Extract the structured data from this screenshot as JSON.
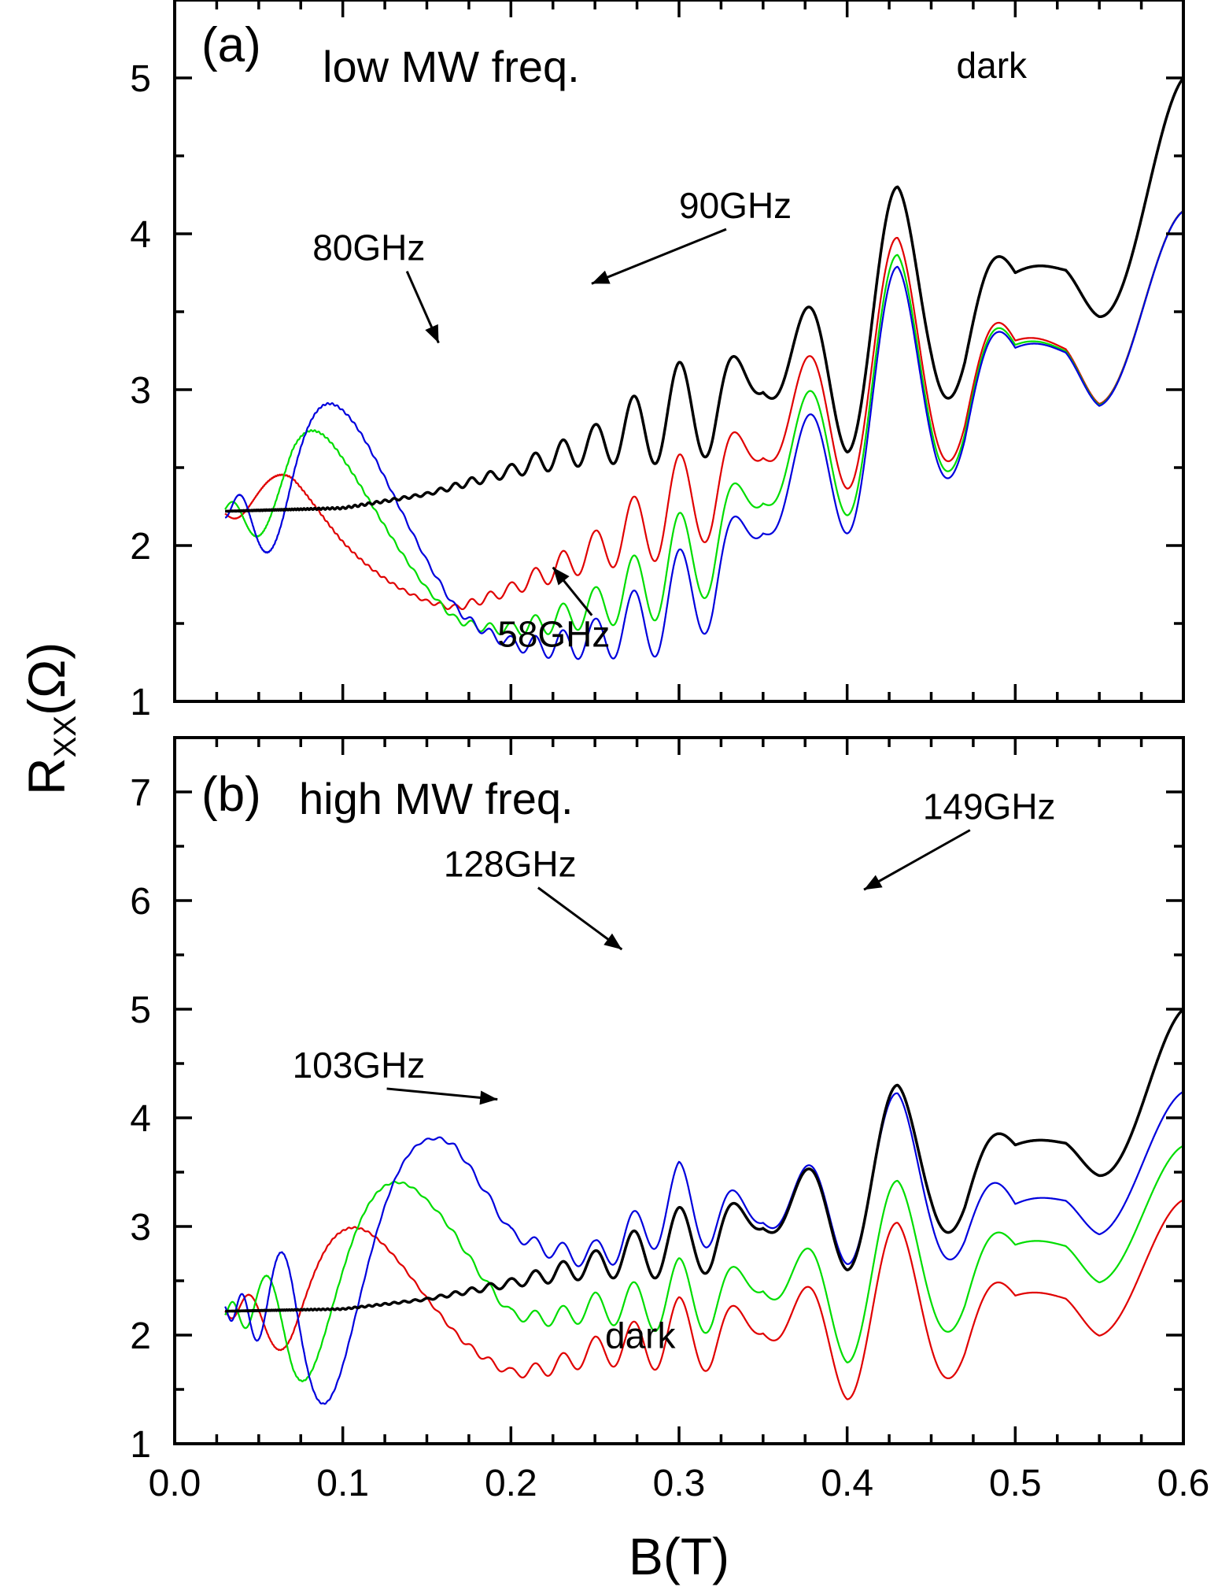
{
  "chart_data": [
    {
      "type": "line",
      "panel_label": "(a)",
      "panel_description": "low MW freq.",
      "xlim": [
        0.0,
        0.6
      ],
      "ylim": [
        1,
        5.5
      ],
      "x_ticks": [
        "0.0",
        "0.1",
        "0.2",
        "0.3",
        "0.4",
        "0.5",
        "0.6"
      ],
      "y_ticks": [
        "1",
        "2",
        "3",
        "4",
        "5"
      ],
      "grid": false,
      "series": [
        {
          "name": "dark",
          "color": "#000000",
          "baseline": [
            [
              0.03,
              2.22
            ],
            [
              0.1,
              2.24
            ],
            [
              0.15,
              2.33
            ],
            [
              0.2,
              2.48
            ],
            [
              0.25,
              2.65
            ],
            [
              0.3,
              2.85
            ],
            [
              0.35,
              3.05
            ],
            [
              0.4,
              3.25
            ],
            [
              0.45,
              3.6
            ],
            [
              0.5,
              3.7
            ],
            [
              0.55,
              3.9
            ],
            [
              0.6,
              4.0
            ]
          ],
          "amplitude": [
            [
              0.03,
              0
            ],
            [
              0.15,
              0.02
            ],
            [
              0.2,
              0.08
            ],
            [
              0.25,
              0.25
            ],
            [
              0.3,
              0.65
            ],
            [
              0.32,
              0.7
            ],
            [
              0.35,
              0.15
            ],
            [
              0.4,
              1.3
            ],
            [
              0.43,
              1.7
            ],
            [
              0.47,
              1.25
            ],
            [
              0.5,
              0.1
            ],
            [
              0.53,
              0.2
            ],
            [
              0.55,
              0.9
            ],
            [
              0.6,
              2.0
            ]
          ]
        },
        {
          "name": "58GHz",
          "color": "#e00000",
          "baseline": [
            [
              0.03,
              2.22
            ],
            [
              0.1,
              2.24
            ],
            [
              0.15,
              2.33
            ],
            [
              0.2,
              2.48
            ],
            [
              0.25,
              2.65
            ],
            [
              0.3,
              2.85
            ],
            [
              0.35,
              3.05
            ],
            [
              0.4,
              3.25
            ],
            [
              0.45,
              3.3
            ],
            [
              0.5,
              3.3
            ],
            [
              0.55,
              3.35
            ],
            [
              0.6,
              3.4
            ]
          ],
          "mw": {
            "freq_GHz": 58,
            "amp": 0.78,
            "decay": 0.022,
            "phase": 0.0
          },
          "amplitude": [
            [
              0.03,
              0
            ],
            [
              0.15,
              0.02
            ],
            [
              0.2,
              0.08
            ],
            [
              0.25,
              0.25
            ],
            [
              0.3,
              0.65
            ],
            [
              0.32,
              0.7
            ],
            [
              0.35,
              0.15
            ],
            [
              0.4,
              1.3
            ],
            [
              0.43,
              1.7
            ],
            [
              0.47,
              1.25
            ],
            [
              0.5,
              0.1
            ],
            [
              0.53,
              0.2
            ],
            [
              0.55,
              0.9
            ],
            [
              0.6,
              1.5
            ]
          ]
        },
        {
          "name": "80GHz",
          "color": "#00dd00",
          "baseline": [
            [
              0.03,
              2.22
            ],
            [
              0.1,
              2.24
            ],
            [
              0.15,
              2.33
            ],
            [
              0.2,
              2.48
            ],
            [
              0.25,
              2.65
            ],
            [
              0.3,
              2.85
            ],
            [
              0.35,
              3.05
            ],
            [
              0.4,
              3.25
            ],
            [
              0.45,
              3.3
            ],
            [
              0.5,
              3.3
            ],
            [
              0.55,
              3.35
            ],
            [
              0.6,
              3.4
            ]
          ],
          "mw": {
            "freq_GHz": 80,
            "amp": 1.05,
            "decay": 0.022,
            "phase": 0.0
          },
          "amplitude": [
            [
              0.03,
              0
            ],
            [
              0.15,
              0.02
            ],
            [
              0.2,
              0.08
            ],
            [
              0.25,
              0.25
            ],
            [
              0.3,
              0.65
            ],
            [
              0.32,
              0.7
            ],
            [
              0.35,
              0.15
            ],
            [
              0.4,
              1.3
            ],
            [
              0.43,
              1.7
            ],
            [
              0.47,
              1.25
            ],
            [
              0.5,
              0.1
            ],
            [
              0.53,
              0.2
            ],
            [
              0.55,
              0.9
            ],
            [
              0.6,
              1.5
            ]
          ]
        },
        {
          "name": "90GHz",
          "color": "#0000dd",
          "baseline": [
            [
              0.03,
              2.22
            ],
            [
              0.1,
              2.24
            ],
            [
              0.15,
              2.33
            ],
            [
              0.2,
              2.48
            ],
            [
              0.25,
              2.65
            ],
            [
              0.3,
              2.85
            ],
            [
              0.35,
              3.05
            ],
            [
              0.4,
              3.25
            ],
            [
              0.45,
              3.3
            ],
            [
              0.5,
              3.3
            ],
            [
              0.55,
              3.35
            ],
            [
              0.6,
              3.4
            ]
          ],
          "mw": {
            "freq_GHz": 90,
            "amp": 1.25,
            "decay": 0.022,
            "phase": 0.0
          },
          "amplitude": [
            [
              0.03,
              0
            ],
            [
              0.15,
              0.02
            ],
            [
              0.2,
              0.08
            ],
            [
              0.25,
              0.25
            ],
            [
              0.3,
              0.65
            ],
            [
              0.32,
              0.7
            ],
            [
              0.35,
              0.15
            ],
            [
              0.4,
              1.3
            ],
            [
              0.43,
              1.7
            ],
            [
              0.47,
              1.25
            ],
            [
              0.5,
              0.1
            ],
            [
              0.53,
              0.2
            ],
            [
              0.55,
              0.9
            ],
            [
              0.6,
              1.5
            ]
          ]
        }
      ],
      "annotations": [
        {
          "text": "dark",
          "x": 0.465,
          "y": 5.0
        },
        {
          "text": "80GHz",
          "x": 0.082,
          "y": 3.83,
          "arrow_to": [
            0.157,
            3.3
          ]
        },
        {
          "text": "90GHz",
          "x": 0.3,
          "y": 4.1,
          "arrow_to": [
            0.248,
            3.68
          ]
        },
        {
          "text": "58GHz",
          "x": 0.192,
          "y": 1.35,
          "arrow_to": [
            0.225,
            1.86
          ]
        }
      ]
    },
    {
      "type": "line",
      "panel_label": "(b)",
      "panel_description": "high MW freq.",
      "xlim": [
        0.0,
        0.6
      ],
      "ylim": [
        1,
        7.5
      ],
      "x_ticks": [
        "0.0",
        "0.1",
        "0.2",
        "0.3",
        "0.4",
        "0.5",
        "0.6"
      ],
      "y_ticks": [
        "1",
        "2",
        "3",
        "4",
        "5",
        "6",
        "7"
      ],
      "grid": false,
      "series": [
        {
          "name": "dark",
          "color": "#000000",
          "baseline": [
            [
              0.03,
              2.22
            ],
            [
              0.1,
              2.24
            ],
            [
              0.15,
              2.33
            ],
            [
              0.2,
              2.48
            ],
            [
              0.25,
              2.65
            ],
            [
              0.3,
              2.85
            ],
            [
              0.35,
              3.05
            ],
            [
              0.4,
              3.25
            ],
            [
              0.45,
              3.6
            ],
            [
              0.5,
              3.7
            ],
            [
              0.55,
              3.9
            ],
            [
              0.6,
              4.0
            ]
          ],
          "amplitude": [
            [
              0.03,
              0
            ],
            [
              0.15,
              0.02
            ],
            [
              0.2,
              0.08
            ],
            [
              0.25,
              0.25
            ],
            [
              0.3,
              0.65
            ],
            [
              0.32,
              0.7
            ],
            [
              0.35,
              0.15
            ],
            [
              0.4,
              1.3
            ],
            [
              0.43,
              1.7
            ],
            [
              0.47,
              1.25
            ],
            [
              0.5,
              0.1
            ],
            [
              0.53,
              0.2
            ],
            [
              0.55,
              0.9
            ],
            [
              0.6,
              2.0
            ]
          ]
        },
        {
          "name": "103GHz",
          "color": "#e00000",
          "baseline": [
            [
              0.03,
              2.22
            ],
            [
              0.1,
              2.24
            ],
            [
              0.15,
              2.33
            ],
            [
              0.2,
              2.5
            ],
            [
              0.25,
              3.0
            ],
            [
              0.3,
              3.2
            ],
            [
              0.35,
              3.0
            ],
            [
              0.4,
              2.6
            ],
            [
              0.45,
              2.5
            ],
            [
              0.5,
              2.4
            ],
            [
              0.55,
              2.45
            ],
            [
              0.6,
              2.5
            ]
          ],
          "mw": {
            "freq_GHz": 103,
            "amp": 1.2,
            "decay": 0.022,
            "phase": 0.0
          },
          "amplitude": [
            [
              0.03,
              0
            ],
            [
              0.15,
              0.02
            ],
            [
              0.2,
              0.08
            ],
            [
              0.25,
              0.25
            ],
            [
              0.3,
              0.65
            ],
            [
              0.32,
              0.7
            ],
            [
              0.35,
              0.15
            ],
            [
              0.4,
              1.3
            ],
            [
              0.43,
              1.7
            ],
            [
              0.47,
              1.25
            ],
            [
              0.5,
              0.1
            ],
            [
              0.53,
              0.2
            ],
            [
              0.55,
              0.9
            ],
            [
              0.6,
              1.5
            ]
          ]
        },
        {
          "name": "128GHz",
          "color": "#00dd00",
          "baseline": [
            [
              0.03,
              2.22
            ],
            [
              0.1,
              2.24
            ],
            [
              0.15,
              2.33
            ],
            [
              0.2,
              2.5
            ],
            [
              0.25,
              3.3
            ],
            [
              0.3,
              3.7
            ],
            [
              0.35,
              3.6
            ],
            [
              0.4,
              3.1
            ],
            [
              0.45,
              3.0
            ],
            [
              0.5,
              2.9
            ],
            [
              0.55,
              2.95
            ],
            [
              0.6,
              3.0
            ]
          ],
          "mw": {
            "freq_GHz": 128,
            "amp": 1.45,
            "decay": 0.022,
            "phase": 0.0
          },
          "amplitude": [
            [
              0.03,
              0
            ],
            [
              0.15,
              0.02
            ],
            [
              0.2,
              0.08
            ],
            [
              0.25,
              0.25
            ],
            [
              0.3,
              0.65
            ],
            [
              0.32,
              0.7
            ],
            [
              0.35,
              0.15
            ],
            [
              0.4,
              1.3
            ],
            [
              0.43,
              1.7
            ],
            [
              0.47,
              1.25
            ],
            [
              0.5,
              0.1
            ],
            [
              0.53,
              0.2
            ],
            [
              0.55,
              0.9
            ],
            [
              0.6,
              1.5
            ]
          ]
        },
        {
          "name": "149GHz",
          "color": "#0000dd",
          "baseline": [
            [
              0.03,
              2.22
            ],
            [
              0.1,
              2.24
            ],
            [
              0.15,
              2.33
            ],
            [
              0.2,
              2.5
            ],
            [
              0.25,
              3.4
            ],
            [
              0.3,
              4.5
            ],
            [
              0.35,
              4.3
            ],
            [
              0.4,
              4.1
            ],
            [
              0.45,
              3.8
            ],
            [
              0.5,
              3.3
            ],
            [
              0.55,
              3.4
            ],
            [
              0.6,
              3.5
            ]
          ],
          "mw": {
            "freq_GHz": 149,
            "amp": 1.65,
            "decay": 0.022,
            "phase": 0.0
          },
          "amplitude": [
            [
              0.03,
              0
            ],
            [
              0.15,
              0.02
            ],
            [
              0.2,
              0.08
            ],
            [
              0.25,
              0.25
            ],
            [
              0.3,
              0.65
            ],
            [
              0.32,
              0.7
            ],
            [
              0.35,
              0.15
            ],
            [
              0.4,
              1.3
            ],
            [
              0.43,
              1.7
            ],
            [
              0.47,
              1.25
            ],
            [
              0.5,
              0.1
            ],
            [
              0.53,
              0.2
            ],
            [
              0.55,
              0.9
            ],
            [
              0.6,
              1.5
            ]
          ]
        }
      ],
      "annotations": [
        {
          "text": "149GHz",
          "x": 0.445,
          "y": 6.75,
          "arrow_to": [
            0.41,
            6.1
          ]
        },
        {
          "text": "128GHz",
          "x": 0.16,
          "y": 6.22,
          "arrow_to": [
            0.266,
            5.55
          ]
        },
        {
          "text": "103GHz",
          "x": 0.07,
          "y": 4.37,
          "arrow_to": [
            0.192,
            4.17
          ]
        },
        {
          "text": "dark",
          "x": 0.256,
          "y": 1.88
        }
      ]
    }
  ],
  "axes": {
    "xlabel": "B(T)",
    "ylabel_main": "R",
    "ylabel_sub": "XX",
    "ylabel_unit": "(Ω)"
  }
}
